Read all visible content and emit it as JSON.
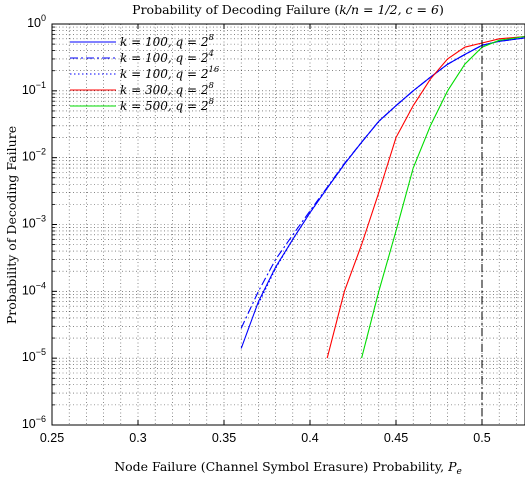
{
  "chart_data": {
    "type": "line",
    "title": "Probability of Decoding Failure (k/n = 1/2, c = 6)",
    "xlabel": "Node Failure (Channel Symbol Erasure) Probability, Pe",
    "ylabel": "Probability of Decoding Failure",
    "xlim": [
      0.25,
      0.525
    ],
    "ylim": [
      1e-06,
      1
    ],
    "yscale": "log",
    "grid": true,
    "x_ticks": [
      0.25,
      0.3,
      0.35,
      0.4,
      0.45,
      0.5
    ],
    "x_tick_labels": [
      "0.25",
      "0.3",
      "0.35",
      "0.4",
      "0.45",
      "0.5"
    ],
    "y_ticks": [
      1e-06,
      1e-05,
      0.0001,
      0.001,
      0.01,
      0.1,
      1
    ],
    "y_tick_labels": [
      {
        "base": "10",
        "exp": "−6"
      },
      {
        "base": "10",
        "exp": "−5"
      },
      {
        "base": "10",
        "exp": "−4"
      },
      {
        "base": "10",
        "exp": "−3"
      },
      {
        "base": "10",
        "exp": "−2"
      },
      {
        "base": "10",
        "exp": "−1"
      },
      {
        "base": "10",
        "exp": "0"
      }
    ],
    "legend_position": "top-left",
    "vline": {
      "x": 0.5,
      "style": "dashdot",
      "color": "#000000"
    },
    "series": [
      {
        "name": "k = 100, q = 2^8",
        "legend": {
          "main": "k = 100, q = 2",
          "sup": "8"
        },
        "color": "#0000ff",
        "dash": "solid",
        "x": [
          0.36,
          0.37,
          0.38,
          0.39,
          0.4,
          0.41,
          0.42,
          0.43,
          0.44,
          0.45,
          0.46,
          0.47,
          0.48,
          0.49,
          0.5,
          0.51,
          0.525
        ],
        "y": [
          1.4e-05,
          7e-05,
          0.00023,
          0.0006,
          0.0015,
          0.0035,
          0.008,
          0.017,
          0.035,
          0.06,
          0.1,
          0.16,
          0.25,
          0.35,
          0.48,
          0.55,
          0.62
        ]
      },
      {
        "name": "k = 100, q = 2^4",
        "legend": {
          "main": "k = 100, q = 2",
          "sup": "4"
        },
        "color": "#0000ff",
        "dash": "dashdot",
        "x": [
          0.36,
          0.37,
          0.38,
          0.39,
          0.4,
          0.41,
          0.42,
          0.43,
          0.44,
          0.45,
          0.46,
          0.47,
          0.48,
          0.49,
          0.5,
          0.51,
          0.525
        ],
        "y": [
          2.8e-05,
          0.0001,
          0.0003,
          0.0007,
          0.0016,
          0.0036,
          0.0082,
          0.017,
          0.035,
          0.06,
          0.1,
          0.16,
          0.25,
          0.35,
          0.48,
          0.55,
          0.62
        ]
      },
      {
        "name": "k = 100, q = 2^16",
        "legend": {
          "main": "k = 100, q = 2",
          "sup": "16"
        },
        "color": "#0000ff",
        "dash": "dotted",
        "x": [
          0.37,
          0.38,
          0.39,
          0.4,
          0.41,
          0.42,
          0.43,
          0.44,
          0.45,
          0.46,
          0.47,
          0.48,
          0.49,
          0.5,
          0.51,
          0.525
        ],
        "y": [
          6.5e-05,
          0.00022,
          0.0006,
          0.0015,
          0.0035,
          0.008,
          0.017,
          0.035,
          0.06,
          0.1,
          0.16,
          0.25,
          0.35,
          0.48,
          0.55,
          0.62
        ]
      },
      {
        "name": "k = 300, q = 2^8",
        "legend": {
          "main": "k = 300, q = 2",
          "sup": "8"
        },
        "color": "#ff0000",
        "dash": "solid",
        "x": [
          0.41,
          0.42,
          0.43,
          0.44,
          0.45,
          0.46,
          0.47,
          0.48,
          0.49,
          0.5,
          0.51,
          0.525
        ],
        "y": [
          1e-05,
          0.0001,
          0.0005,
          0.003,
          0.02,
          0.06,
          0.15,
          0.3,
          0.45,
          0.52,
          0.6,
          0.65
        ]
      },
      {
        "name": "k = 500, q = 2^8",
        "legend": {
          "main": "k = 500, q = 2",
          "sup": "8"
        },
        "color": "#00dd00",
        "dash": "solid",
        "x": [
          0.43,
          0.44,
          0.45,
          0.46,
          0.47,
          0.48,
          0.49,
          0.5,
          0.51,
          0.525
        ],
        "y": [
          1e-05,
          0.0001,
          0.0008,
          0.007,
          0.03,
          0.1,
          0.25,
          0.45,
          0.57,
          0.65
        ]
      }
    ]
  }
}
